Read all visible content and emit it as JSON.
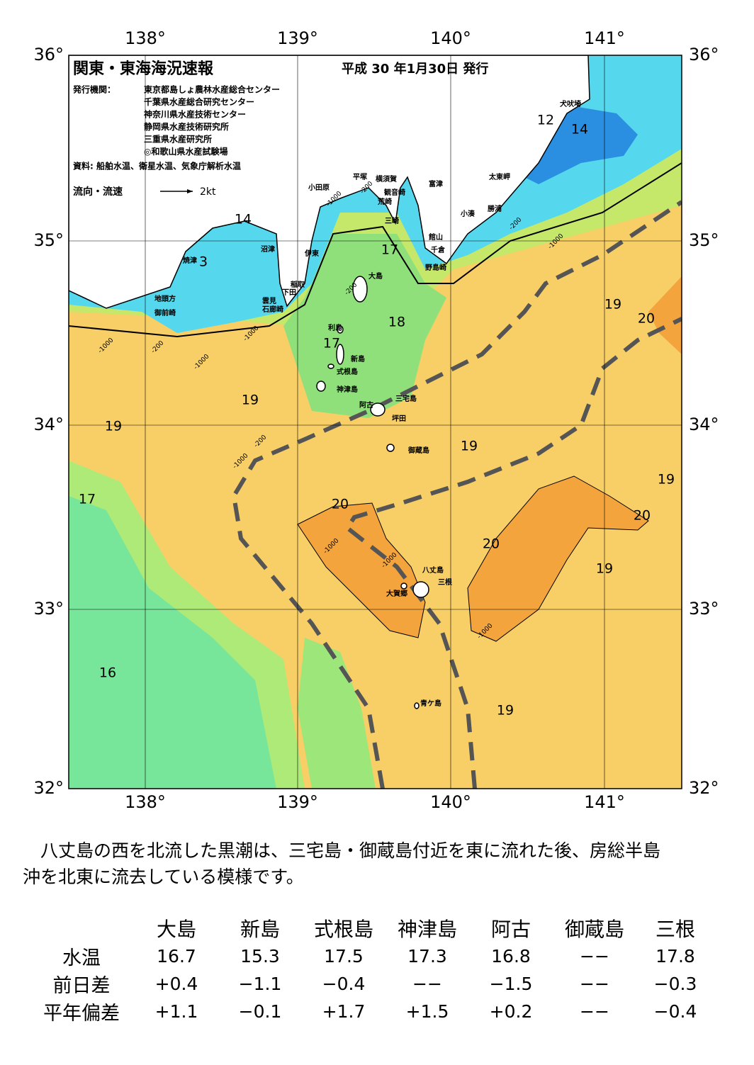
{
  "header": {
    "title": "関東・東海海況速報",
    "date": "平成 30 年1月30日 発行",
    "issuer_label": "発行機関：",
    "issuers": [
      "東京都島しょ農林水産総合センター",
      "千葉県水産総合研究センター",
      "神奈川県水産技術センター",
      "静岡県水産技術研究所",
      "三重県水産研究所",
      "◎和歌山県水産試験場"
    ],
    "source": "資料: 船舶水温、衛星水温、気象庁解析水温",
    "legend_label": "流向・流速",
    "legend_speed": "2kt"
  },
  "map": {
    "lon_labels": [
      "138°",
      "139°",
      "140°",
      "141°"
    ],
    "lat_labels": [
      "36°",
      "35°",
      "34°",
      "33°",
      "32°"
    ],
    "places": [
      "犬吠埼",
      "太東岬",
      "勝浦",
      "小湊",
      "富津",
      "館山",
      "千倉",
      "野島崎",
      "横須賀",
      "観音崎",
      "荒崎",
      "三崎",
      "平塚",
      "小田原",
      "沼津",
      "伊東",
      "稲取",
      "下田",
      "雲見",
      "石廊崎",
      "焼津",
      "地頭方",
      "御前崎",
      "大島",
      "利島",
      "新島",
      "式根島",
      "神津島",
      "三宅島",
      "阿古",
      "坪田",
      "御蔵島",
      "八丈島",
      "三根",
      "大賀郷",
      "青ケ島"
    ],
    "temperature_labels": [
      "12",
      "14",
      "14",
      "3",
      "17",
      "18",
      "17",
      "19",
      "20",
      "19",
      "19",
      "19",
      "19",
      "17",
      "20",
      "20",
      "20",
      "19",
      "16",
      "19"
    ],
    "depth_labels": [
      "-200",
      "-1000",
      "-200",
      "-1000",
      "-200",
      "-1000",
      "-1000",
      "-200",
      "-1000",
      "-1000",
      "-200",
      "-1000",
      "-1000",
      "-1000"
    ]
  },
  "description": [
    "　八丈島の西を北流した黒潮は、三宅島・御蔵島付近を東に流れた後、房総半島",
    "沖を北東に流去している模様です。"
  ],
  "table": {
    "columns": [
      "大島",
      "新島",
      "式根島",
      "神津島",
      "阿古",
      "御蔵島",
      "三根"
    ],
    "rows": [
      {
        "label": "水温",
        "values": [
          "16.7",
          "15.3",
          "17.5",
          "17.3",
          "16.8",
          "−−",
          "17.8"
        ]
      },
      {
        "label": "前日差",
        "values": [
          "+0.4",
          "−1.1",
          "−0.4",
          "−−",
          "−1.5",
          "−−",
          "−0.3"
        ]
      },
      {
        "label": "平年偏差",
        "values": [
          "+1.1",
          "−0.1",
          "+1.7",
          "+1.5",
          "+0.2",
          "−−",
          "−0.4"
        ]
      }
    ]
  }
}
